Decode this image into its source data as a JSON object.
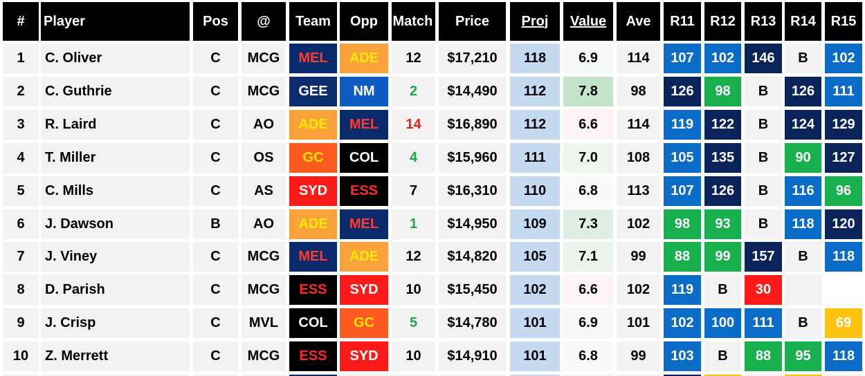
{
  "headers": {
    "num": "#",
    "player": "Player",
    "pos": "Pos",
    "at": "@",
    "team": "Team",
    "opp": "Opp",
    "matchup": "Match Up",
    "price": "Price",
    "proj": "Proj",
    "value": "Value",
    "ave": "Ave",
    "r11": "R11",
    "r12": "R12",
    "r13": "R13",
    "r14": "R14",
    "r15": "R15"
  },
  "team_colors": {
    "MEL": {
      "bg": "#0A2A6B",
      "fg": "#FF3B30"
    },
    "ADE": {
      "bg": "#F9A13A",
      "fg": "#FFEB00"
    },
    "GEE": {
      "bg": "#0B2D6E",
      "fg": "#FFFFFF"
    },
    "NM": {
      "bg": "#0E5BC4",
      "fg": "#FFFFFF"
    },
    "GC": {
      "bg": "#FF5A1F",
      "fg": "#FFE500"
    },
    "COL": {
      "bg": "#000000",
      "fg": "#FFFFFF"
    },
    "SYD": {
      "bg": "#FF1A1A",
      "fg": "#FFFFFF"
    },
    "ESS": {
      "bg": "#000000",
      "fg": "#FF2B2B"
    }
  },
  "matchup_colors": {
    "green": "#1BA84A",
    "red": "#E8231F",
    "black": "#000000"
  },
  "round_colors": {
    "dark_navy": "#0A2459",
    "blue": "#0A6CC7",
    "green": "#18B04E",
    "red": "#FF1A1A",
    "yellow": "#FFC20E",
    "bye_bg": "#F2F2F2",
    "blank_bg": "#FFFFFF"
  },
  "proj_bg": "#C5D9F1",
  "rows": [
    {
      "num": "1",
      "player": "C. Oliver",
      "pos": "C",
      "at": "MCG",
      "team": "MEL",
      "opp": "ADE",
      "matchup": "12",
      "matchup_color": "black",
      "price": "$17,210",
      "proj": "118",
      "value": "6.9",
      "value_bg": "#F5F8F5",
      "ave": "114",
      "rounds": [
        {
          "v": "107",
          "c": "blue"
        },
        {
          "v": "102",
          "c": "blue"
        },
        {
          "v": "146",
          "c": "dark_navy"
        },
        {
          "v": "B",
          "c": "bye"
        },
        {
          "v": "102",
          "c": "blue"
        }
      ]
    },
    {
      "num": "2",
      "player": "C. Guthrie",
      "pos": "C",
      "at": "MCG",
      "team": "GEE",
      "opp": "NM",
      "matchup": "2",
      "matchup_color": "green",
      "price": "$14,490",
      "proj": "112",
      "value": "7.8",
      "value_bg": "#C4E4CB",
      "ave": "98",
      "rounds": [
        {
          "v": "126",
          "c": "dark_navy"
        },
        {
          "v": "98",
          "c": "green"
        },
        {
          "v": "B",
          "c": "bye"
        },
        {
          "v": "126",
          "c": "dark_navy"
        },
        {
          "v": "111",
          "c": "blue"
        }
      ]
    },
    {
      "num": "3",
      "player": "R. Laird",
      "pos": "C",
      "at": "AO",
      "team": "ADE",
      "opp": "MEL",
      "matchup": "14",
      "matchup_color": "red",
      "price": "$16,890",
      "proj": "112",
      "value": "6.6",
      "value_bg": "#FBF3F4",
      "ave": "114",
      "rounds": [
        {
          "v": "119",
          "c": "blue"
        },
        {
          "v": "122",
          "c": "dark_navy"
        },
        {
          "v": "B",
          "c": "bye"
        },
        {
          "v": "124",
          "c": "dark_navy"
        },
        {
          "v": "129",
          "c": "dark_navy"
        }
      ]
    },
    {
      "num": "4",
      "player": "T. Miller",
      "pos": "C",
      "at": "OS",
      "team": "GC",
      "opp": "COL",
      "matchup": "4",
      "matchup_color": "green",
      "price": "$15,960",
      "proj": "111",
      "value": "7.0",
      "value_bg": "#EEF5EF",
      "ave": "108",
      "rounds": [
        {
          "v": "105",
          "c": "blue"
        },
        {
          "v": "135",
          "c": "dark_navy"
        },
        {
          "v": "B",
          "c": "bye"
        },
        {
          "v": "90",
          "c": "green"
        },
        {
          "v": "127",
          "c": "dark_navy"
        }
      ]
    },
    {
      "num": "5",
      "player": "C. Mills",
      "pos": "C",
      "at": "AS",
      "team": "SYD",
      "opp": "ESS",
      "matchup": "7",
      "matchup_color": "black",
      "price": "$16,310",
      "proj": "110",
      "value": "6.8",
      "value_bg": "#F8F9FA",
      "ave": "113",
      "rounds": [
        {
          "v": "107",
          "c": "blue"
        },
        {
          "v": "126",
          "c": "dark_navy"
        },
        {
          "v": "B",
          "c": "bye"
        },
        {
          "v": "116",
          "c": "blue"
        },
        {
          "v": "96",
          "c": "green"
        }
      ]
    },
    {
      "num": "6",
      "player": "J. Dawson",
      "pos": "B",
      "at": "AO",
      "team": "ADE",
      "opp": "MEL",
      "matchup": "1",
      "matchup_color": "green",
      "price": "$14,950",
      "proj": "109",
      "value": "7.3",
      "value_bg": "#DFEFE3",
      "ave": "102",
      "rounds": [
        {
          "v": "98",
          "c": "green"
        },
        {
          "v": "93",
          "c": "green"
        },
        {
          "v": "B",
          "c": "bye"
        },
        {
          "v": "118",
          "c": "blue"
        },
        {
          "v": "120",
          "c": "dark_navy"
        }
      ]
    },
    {
      "num": "7",
      "player": "J. Viney",
      "pos": "C",
      "at": "MCG",
      "team": "MEL",
      "opp": "ADE",
      "matchup": "12",
      "matchup_color": "black",
      "price": "$14,820",
      "proj": "105",
      "value": "7.1",
      "value_bg": "#EAF3EC",
      "ave": "99",
      "rounds": [
        {
          "v": "88",
          "c": "green"
        },
        {
          "v": "99",
          "c": "green"
        },
        {
          "v": "157",
          "c": "dark_navy"
        },
        {
          "v": "B",
          "c": "bye"
        },
        {
          "v": "118",
          "c": "blue"
        }
      ]
    },
    {
      "num": "8",
      "player": "D. Parish",
      "pos": "C",
      "at": "MCG",
      "team": "ESS",
      "opp": "SYD",
      "matchup": "10",
      "matchup_color": "black",
      "price": "$15,450",
      "proj": "102",
      "value": "6.6",
      "value_bg": "#FBF3F4",
      "ave": "102",
      "rounds": [
        {
          "v": "119",
          "c": "blue"
        },
        {
          "v": "B",
          "c": "bye"
        },
        {
          "v": "30",
          "c": "red"
        },
        {
          "v": "",
          "c": "bye"
        },
        {
          "v": "",
          "c": "blank"
        }
      ]
    },
    {
      "num": "9",
      "player": "J. Crisp",
      "pos": "C",
      "at": "MVL",
      "team": "COL",
      "opp": "GC",
      "matchup": "5",
      "matchup_color": "green",
      "price": "$14,780",
      "proj": "101",
      "value": "6.9",
      "value_bg": "#F5F8F5",
      "ave": "101",
      "rounds": [
        {
          "v": "102",
          "c": "blue"
        },
        {
          "v": "100",
          "c": "blue"
        },
        {
          "v": "111",
          "c": "blue"
        },
        {
          "v": "B",
          "c": "bye"
        },
        {
          "v": "69",
          "c": "yellow"
        }
      ]
    },
    {
      "num": "10",
      "player": "Z. Merrett",
      "pos": "C",
      "at": "MCG",
      "team": "ESS",
      "opp": "SYD",
      "matchup": "10",
      "matchup_color": "black",
      "price": "$14,910",
      "proj": "101",
      "value": "6.8",
      "value_bg": "#F8F9FA",
      "ave": "99",
      "rounds": [
        {
          "v": "103",
          "c": "blue"
        },
        {
          "v": "B",
          "c": "bye"
        },
        {
          "v": "88",
          "c": "green"
        },
        {
          "v": "95",
          "c": "green"
        },
        {
          "v": "118",
          "c": "blue"
        }
      ]
    }
  ]
}
